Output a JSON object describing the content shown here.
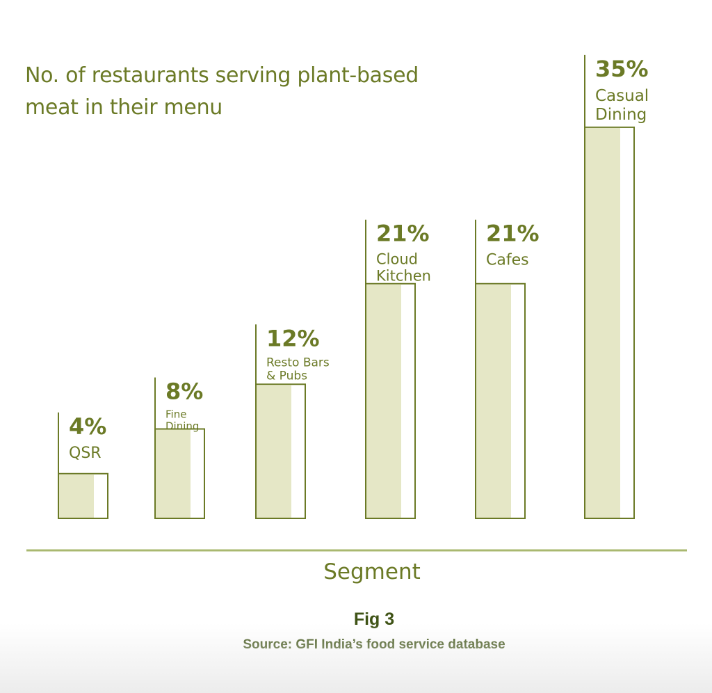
{
  "chart_data": {
    "type": "bar",
    "title": "No. of restaurants serving plant-based meat in their menu",
    "xlabel": "Segment",
    "ylabel": "",
    "unit": "%",
    "ylim": [
      0,
      35
    ],
    "grid": false,
    "legend": "none",
    "categories": [
      "QSR",
      "Fine Dining",
      "Resto Bars & Pubs",
      "Cloud Kitchen",
      "Cafes",
      "Casual Dining"
    ],
    "category_lines": [
      [
        "QSR"
      ],
      [
        "Fine",
        "Dining"
      ],
      [
        "Resto Bars",
        "& Pubs"
      ],
      [
        "Cloud",
        "Kitchen"
      ],
      [
        "Cafes"
      ],
      [
        "Casual",
        "Dining"
      ]
    ],
    "values": [
      4,
      8,
      12,
      21,
      21,
      35
    ],
    "value_labels": [
      "4%",
      "8%",
      "12%",
      "21%",
      "21%",
      "35%"
    ]
  },
  "figure": {
    "label": "Fig 3",
    "source": "Source: GFI India’s food service database"
  },
  "colors": {
    "accent": "#6b7a26",
    "bar_fill": "#e5e7c6",
    "bar_outline": "#6b7a26",
    "footer_text": "#3f5316",
    "axis_line": "#a9b870"
  }
}
